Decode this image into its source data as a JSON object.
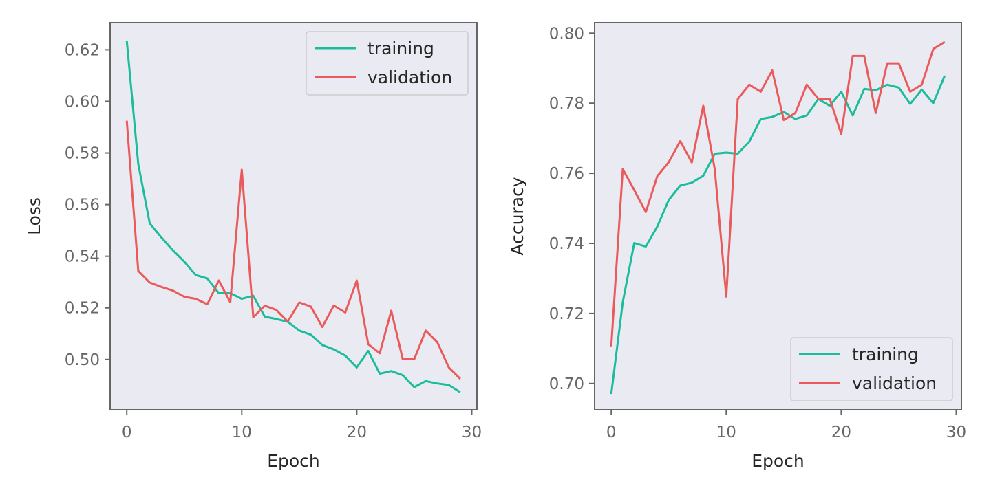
{
  "chart_data": [
    {
      "type": "line",
      "xlabel": "Epoch",
      "ylabel": "Loss",
      "xlim": [
        -1.45,
        30.45
      ],
      "ylim": [
        0.4805,
        0.6305
      ],
      "xticks": [
        0,
        10,
        20,
        30
      ],
      "yticks": [
        0.5,
        0.52,
        0.54,
        0.56,
        0.58,
        0.6,
        0.62
      ],
      "legend_position": "top-right",
      "grid": false,
      "x": [
        0,
        1,
        2,
        3,
        4,
        5,
        6,
        7,
        8,
        9,
        10,
        11,
        12,
        13,
        14,
        15,
        16,
        17,
        18,
        19,
        20,
        21,
        22,
        23,
        24,
        25,
        26,
        27,
        28,
        29
      ],
      "series": [
        {
          "name": "training",
          "color": "#1abc9c",
          "values": [
            0.6235,
            0.5757,
            0.5527,
            0.5473,
            0.5423,
            0.5379,
            0.5327,
            0.5314,
            0.5257,
            0.5257,
            0.5235,
            0.5247,
            0.5166,
            0.5157,
            0.5146,
            0.5112,
            0.5096,
            0.5056,
            0.5039,
            0.5015,
            0.4969,
            0.5033,
            0.4945,
            0.4955,
            0.4939,
            0.4893,
            0.4916,
            0.4907,
            0.4901,
            0.4873
          ]
        },
        {
          "name": "validation",
          "color": "#eb5a5a",
          "values": [
            0.5925,
            0.5343,
            0.5298,
            0.5281,
            0.5267,
            0.5243,
            0.5235,
            0.5214,
            0.5306,
            0.5222,
            0.5735,
            0.5164,
            0.5208,
            0.5192,
            0.5147,
            0.5221,
            0.5205,
            0.5126,
            0.5209,
            0.5182,
            0.5306,
            0.5059,
            0.5024,
            0.5189,
            0.5001,
            0.5001,
            0.5112,
            0.5067,
            0.4969,
            0.4925
          ]
        }
      ]
    },
    {
      "type": "line",
      "xlabel": "Epoch",
      "ylabel": "Accuracy",
      "xlim": [
        -1.45,
        30.45
      ],
      "ylim": [
        0.6925,
        0.803
      ],
      "xticks": [
        0,
        10,
        20,
        30
      ],
      "yticks": [
        0.7,
        0.72,
        0.74,
        0.76,
        0.78,
        0.8
      ],
      "legend_position": "bottom-right",
      "grid": false,
      "x": [
        0,
        1,
        2,
        3,
        4,
        5,
        6,
        7,
        8,
        9,
        10,
        11,
        12,
        13,
        14,
        15,
        16,
        17,
        18,
        19,
        20,
        21,
        22,
        23,
        24,
        25,
        26,
        27,
        28,
        29
      ],
      "series": [
        {
          "name": "training",
          "color": "#1abc9c",
          "values": [
            0.697,
            0.7232,
            0.7401,
            0.7391,
            0.7448,
            0.7524,
            0.7565,
            0.7573,
            0.7593,
            0.7656,
            0.7659,
            0.7656,
            0.769,
            0.7755,
            0.7761,
            0.7775,
            0.7755,
            0.7765,
            0.7812,
            0.7793,
            0.7833,
            0.7765,
            0.7841,
            0.7837,
            0.7853,
            0.7845,
            0.7798,
            0.7839,
            0.78,
            0.7879
          ]
        },
        {
          "name": "validation",
          "color": "#eb5a5a",
          "values": [
            0.7106,
            0.7612,
            0.7552,
            0.7489,
            0.7592,
            0.7632,
            0.7692,
            0.7631,
            0.7793,
            0.7612,
            0.7248,
            0.7812,
            0.7853,
            0.7833,
            0.7894,
            0.7752,
            0.7772,
            0.7853,
            0.7813,
            0.7813,
            0.7712,
            0.7935,
            0.7935,
            0.7772,
            0.7914,
            0.7914,
            0.7833,
            0.7853,
            0.7955,
            0.7975
          ]
        }
      ]
    }
  ]
}
